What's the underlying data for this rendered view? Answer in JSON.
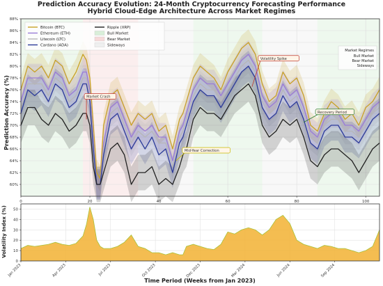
{
  "title": "Prediction Accuracy Evolution: 24-Month Cryptocurrency Forecasting Performance",
  "subtitle": "Hybrid Cloud-Edge Architecture Across Market Regimes",
  "colors": {
    "btc": "#c9a227",
    "eth": "#9a7bd8",
    "ltc": "#b7b7b7",
    "ada": "#2d3c9a",
    "xrp": "#222222",
    "bull": "#d9efd9",
    "bear": "#f7dada",
    "sideways": "#efefef",
    "volatility": "#f2b233"
  },
  "chart_data": [
    {
      "type": "line",
      "x": [
        0,
        2,
        4,
        6,
        8,
        10,
        12,
        14,
        16,
        18,
        19,
        20,
        21,
        22,
        23,
        24,
        26,
        28,
        30,
        32,
        34,
        36,
        38,
        40,
        42,
        44,
        46,
        47,
        48,
        50,
        52,
        54,
        56,
        58,
        60,
        62,
        64,
        66,
        68,
        70,
        72,
        74,
        76,
        78,
        80,
        82,
        84,
        86,
        88,
        90,
        92,
        94,
        96,
        98,
        100,
        102,
        104
      ],
      "xlim": [
        0,
        104
      ],
      "ylim": [
        58,
        88
      ],
      "yticks": [
        60,
        62,
        64,
        66,
        68,
        70,
        72,
        74,
        76,
        78,
        80,
        82,
        84,
        86,
        88
      ],
      "xticks": [
        0,
        20,
        40,
        60,
        80,
        100
      ],
      "ylabel": "Prediction Accuracy (%)",
      "grid": true,
      "legend_position": "top-left",
      "series": [
        {
          "name": "Bitcoin (BTC)",
          "color": "#c9a227",
          "values": [
            76,
            80,
            79,
            80,
            78,
            81,
            80,
            77,
            79,
            82,
            81,
            78,
            70,
            62,
            61,
            70,
            75,
            76,
            73,
            70,
            72,
            71,
            72,
            69,
            70,
            66,
            71,
            72,
            74,
            78,
            80,
            79,
            78,
            76,
            79,
            81,
            83,
            84,
            82,
            77,
            74,
            75,
            79,
            77,
            78,
            75,
            70,
            69,
            72,
            74,
            73,
            71,
            72,
            70,
            73,
            74,
            76
          ]
        },
        {
          "name": "Ethereum (ETH)",
          "color": "#9a7bd8",
          "values": [
            74,
            78,
            78,
            78,
            76,
            79,
            78,
            75,
            76,
            79,
            79,
            76,
            68,
            60,
            60,
            67,
            73,
            74,
            71,
            68,
            70,
            69,
            70,
            68,
            68,
            64,
            69,
            70,
            72,
            76,
            78,
            77,
            77,
            75,
            77,
            79,
            81,
            82,
            80,
            75,
            73,
            74,
            77,
            75,
            76,
            73,
            69,
            68,
            71,
            72,
            72,
            70,
            70,
            69,
            71,
            73,
            74
          ]
        },
        {
          "name": "Litecoin (LTC)",
          "color": "#b7b7b7",
          "values": [
            73,
            77,
            77,
            77,
            75,
            78,
            77,
            74,
            75,
            78,
            78,
            75,
            67,
            60,
            60,
            66,
            72,
            73,
            70,
            67,
            69,
            68,
            69,
            67,
            67,
            63,
            68,
            69,
            71,
            75,
            77,
            76,
            76,
            74,
            76,
            78,
            80,
            81,
            79,
            74,
            72,
            73,
            76,
            74,
            75,
            72,
            68,
            67,
            70,
            71,
            71,
            69,
            69,
            68,
            70,
            72,
            73
          ]
        },
        {
          "name": "Cardano (ADA)",
          "color": "#2d3c9a",
          "values": [
            72,
            76,
            75,
            76,
            74,
            77,
            76,
            73,
            74,
            77,
            77,
            74,
            66,
            60,
            60,
            65,
            71,
            72,
            69,
            66,
            68,
            66,
            68,
            65,
            66,
            62,
            67,
            68,
            70,
            74,
            76,
            75,
            75,
            73,
            75,
            77,
            79,
            80,
            78,
            73,
            71,
            72,
            75,
            73,
            74,
            71,
            67,
            66,
            69,
            70,
            70,
            68,
            68,
            67,
            69,
            71,
            72
          ]
        },
        {
          "name": "Ripple (XRP)",
          "color": "#222222",
          "values": [
            70,
            73,
            73,
            71,
            70,
            72,
            71,
            69,
            70,
            72,
            72,
            70,
            63,
            60,
            60,
            62,
            66,
            67,
            65,
            60,
            62,
            62,
            63,
            60,
            61,
            60,
            63,
            65,
            66,
            71,
            73,
            72,
            72,
            71,
            73,
            75,
            76,
            77,
            75,
            70,
            68,
            69,
            71,
            70,
            71,
            68,
            64,
            63,
            65,
            66,
            66,
            65,
            64,
            62,
            64,
            66,
            67
          ]
        }
      ],
      "legend_extra": [
        "Bull Market",
        "Bear Market",
        "Sideways"
      ],
      "regime_legend": {
        "title": "Market Regimes",
        "items": [
          "Bull Market",
          "Bear Market",
          "Sideways"
        ]
      },
      "regimes": [
        {
          "type": "Bull Market",
          "start": 0,
          "end": 18
        },
        {
          "type": "Bear Market",
          "start": 18,
          "end": 34
        },
        {
          "type": "Sideways",
          "start": 34,
          "end": 50
        },
        {
          "type": "Bull Market",
          "start": 50,
          "end": 70
        },
        {
          "type": "Sideways",
          "start": 70,
          "end": 86
        },
        {
          "type": "Bull Market",
          "start": 86,
          "end": 104
        }
      ],
      "annotations": [
        {
          "text": "Market Crash",
          "x": 19,
          "y": 71,
          "color": "#c0392b"
        },
        {
          "text": "Mid-Year Correction",
          "x": 45,
          "y": 64,
          "color": "#c9b800"
        },
        {
          "text": "Volatility Spike",
          "x": 67,
          "y": 76.5,
          "color": "#c0392b"
        },
        {
          "text": "Recovery Period",
          "x": 82,
          "y": 70.5,
          "color": "#2e7d32"
        }
      ]
    },
    {
      "type": "area",
      "x": [
        0,
        2,
        4,
        6,
        8,
        10,
        12,
        14,
        16,
        18,
        19,
        20,
        21,
        22,
        23,
        24,
        26,
        28,
        30,
        32,
        34,
        36,
        38,
        40,
        42,
        44,
        46,
        47,
        48,
        50,
        52,
        54,
        56,
        58,
        60,
        62,
        64,
        66,
        68,
        70,
        72,
        74,
        76,
        78,
        80,
        82,
        84,
        86,
        88,
        90,
        92,
        94,
        96,
        98,
        100,
        102,
        104
      ],
      "xlim": [
        0,
        104
      ],
      "ylim": [
        0,
        55
      ],
      "yticks": [
        0,
        10,
        20,
        30,
        40,
        50
      ],
      "ylabel": "Volatility Index (%)",
      "xlabel": "Time Period (Weeks from Jan 2023)",
      "xtick_labels": [
        {
          "label": "Jan 2023",
          "x": 0
        },
        {
          "label": "Apr 2023",
          "x": 13
        },
        {
          "label": "Jul 2023",
          "x": 26
        },
        {
          "label": "Oct 2023",
          "x": 39
        },
        {
          "label": "Dec 2023",
          "x": 52
        },
        {
          "label": "Mar 2024",
          "x": 65
        },
        {
          "label": "Jun 2024",
          "x": 78
        },
        {
          "label": "Sep 2024",
          "x": 91
        }
      ],
      "series": [
        {
          "values": [
            12,
            15,
            14,
            15,
            16,
            18,
            16,
            15,
            17,
            24,
            35,
            52,
            40,
            20,
            14,
            12,
            12,
            14,
            18,
            25,
            14,
            12,
            8,
            8,
            6,
            8,
            6,
            6,
            14,
            16,
            14,
            12,
            11,
            16,
            28,
            26,
            30,
            32,
            30,
            25,
            30,
            40,
            44,
            36,
            20,
            16,
            14,
            12,
            15,
            14,
            12,
            12,
            10,
            8,
            10,
            14,
            30
          ]
        }
      ]
    }
  ]
}
